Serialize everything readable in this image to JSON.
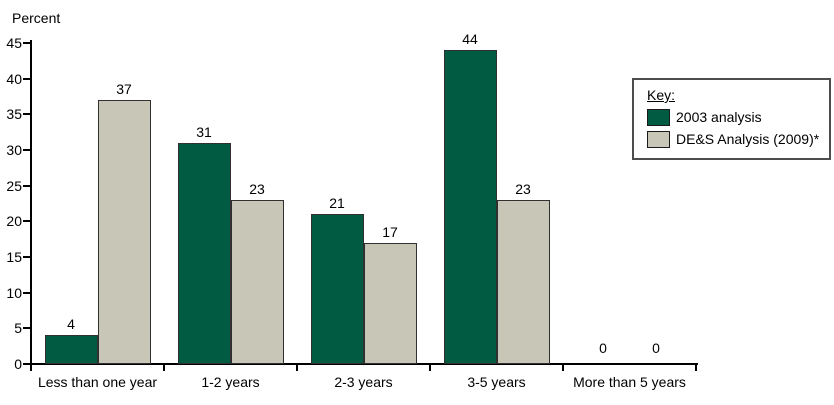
{
  "chart": {
    "y_axis_title": "Percent",
    "legend": {
      "title": "Key:"
    }
  },
  "chart_data": {
    "type": "bar",
    "title": "",
    "xlabel": "",
    "ylabel": "Percent",
    "categories": [
      "Less than one year",
      "1-2 years",
      "2-3 years",
      "3-5 years",
      "More than 5 years"
    ],
    "series": [
      {
        "name": "2003 analysis",
        "color": "#015A42",
        "values": [
          4,
          31,
          21,
          44,
          0
        ]
      },
      {
        "name": "DE&S Analysis (2009)*",
        "color": "#C7C6B7",
        "values": [
          37,
          23,
          17,
          23,
          0
        ]
      }
    ],
    "bar_value_labels": [
      [
        "4",
        "37"
      ],
      [
        "31",
        "23"
      ],
      [
        "21",
        "17"
      ],
      [
        "44",
        "23"
      ],
      [
        "0",
        "0"
      ]
    ],
    "ylim": [
      0,
      45
    ],
    "ytick_step": 5,
    "grid": false,
    "legend_position": "right",
    "legend_title": "Key:"
  }
}
